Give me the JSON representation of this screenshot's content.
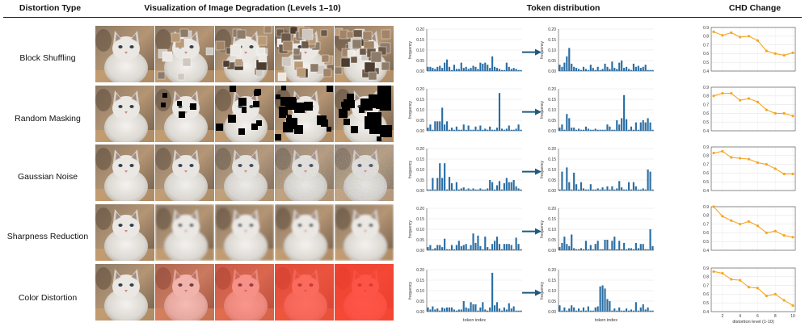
{
  "headers": {
    "distortion_type": "Distortion Type",
    "visualization": "Visualization of Image Degradation (Levels 1–10)",
    "token_distribution": "Token distribution",
    "chd_change": "CHD Change"
  },
  "rows": [
    {
      "label": "Block Shuffling",
      "distortion": "block_shuffle"
    },
    {
      "label": "Random Masking",
      "distortion": "random_mask"
    },
    {
      "label": "Gaussian Noise",
      "distortion": "gaussian_noise"
    },
    {
      "label": "Sharpness Reduction",
      "distortion": "blur"
    },
    {
      "label": "Color Distortion",
      "distortion": "color"
    }
  ],
  "colors": {
    "bar": "#2b6ea3",
    "line": "#f5a623",
    "arrow": "#1f5a7e",
    "tint": "#ff3a2a"
  },
  "chart_data": [
    {
      "type": "bar",
      "row": 0,
      "side": "before",
      "ylabel": "frequency",
      "ylim": [
        0,
        0.2
      ],
      "yticks": [
        "0.00",
        "0.05",
        "0.10",
        "0.15",
        "0.20"
      ],
      "values": [
        0.02,
        0.02,
        0.015,
        0.01,
        0.02,
        0.025,
        0.015,
        0.04,
        0.055,
        0.02,
        0.005,
        0.03,
        0.01,
        0.01,
        0.04,
        0.015,
        0.02,
        0.01,
        0.015,
        0.025,
        0.02,
        0.01,
        0.04,
        0.035,
        0.04,
        0.03,
        0.015,
        0.07,
        0.02,
        0.015,
        0.01,
        0.005,
        0.005,
        0.04,
        0.02,
        0.01,
        0.015,
        0.01,
        0.005,
        0.005
      ]
    },
    {
      "type": "bar",
      "row": 0,
      "side": "after",
      "ylabel": "frequency",
      "ylim": [
        0,
        0.2
      ],
      "yticks": [
        "0.00",
        "0.05",
        "0.10",
        "0.15",
        "0.20"
      ],
      "values": [
        0.03,
        0.02,
        0.04,
        0.07,
        0.11,
        0.035,
        0.02,
        0.015,
        0.01,
        0.005,
        0.02,
        0.01,
        0.005,
        0.03,
        0.015,
        0.005,
        0.02,
        0.005,
        0.01,
        0.035,
        0.02,
        0.01,
        0.045,
        0.015,
        0.01,
        0.04,
        0.05,
        0.015,
        0.02,
        0.01,
        0.005,
        0.035,
        0.02,
        0.025,
        0.015,
        0.02,
        0.03,
        0.005,
        0.005,
        0.005
      ]
    },
    {
      "type": "bar",
      "row": 1,
      "side": "before",
      "ylabel": "frequency",
      "ylim": [
        0,
        0.2
      ],
      "yticks": [
        "0.00",
        "0.05",
        "0.10",
        "0.15",
        "0.20"
      ],
      "values": [
        0.015,
        0.03,
        0.005,
        0.045,
        0.045,
        0.045,
        0.11,
        0.03,
        0.045,
        0.005,
        0.015,
        0.005,
        0.02,
        0.005,
        0.005,
        0.03,
        0.005,
        0.025,
        0.005,
        0.005,
        0.02,
        0.005,
        0.025,
        0.005,
        0.01,
        0.005,
        0.02,
        0.005,
        0.005,
        0.015,
        0.18,
        0.01,
        0.005,
        0.01,
        0.025,
        0.005,
        0.005,
        0.01,
        0.03,
        0.005
      ]
    },
    {
      "type": "bar",
      "row": 1,
      "side": "after",
      "ylabel": "frequency",
      "ylim": [
        0,
        0.2
      ],
      "yticks": [
        "0.00",
        "0.05",
        "0.10",
        "0.15",
        "0.20"
      ],
      "values": [
        0.015,
        0.03,
        0.005,
        0.08,
        0.06,
        0.015,
        0.015,
        0.005,
        0.01,
        0.005,
        0.005,
        0.02,
        0.01,
        0.005,
        0.005,
        0.01,
        0.005,
        0.005,
        0.005,
        0.005,
        0.03,
        0.02,
        0.005,
        0.005,
        0.05,
        0.03,
        0.06,
        0.17,
        0.055,
        0.005,
        0.02,
        0.005,
        0.04,
        0.005,
        0.04,
        0.05,
        0.04,
        0.06,
        0.04,
        0.005
      ]
    },
    {
      "type": "bar",
      "row": 2,
      "side": "before",
      "ylabel": "frequency",
      "ylim": [
        0,
        0.2
      ],
      "yticks": [
        "0.00",
        "0.05",
        "0.10",
        "0.15",
        "0.20"
      ],
      "values": [
        0.005,
        0.005,
        0.06,
        0.005,
        0.06,
        0.13,
        0.06,
        0.13,
        0.005,
        0.065,
        0.035,
        0.005,
        0.04,
        0.005,
        0.01,
        0.015,
        0.005,
        0.01,
        0.005,
        0.01,
        0.005,
        0.005,
        0.01,
        0.005,
        0.005,
        0.01,
        0.05,
        0.04,
        0.005,
        0.025,
        0.045,
        0.005,
        0.035,
        0.06,
        0.04,
        0.04,
        0.05,
        0.02,
        0.01,
        0.005
      ]
    },
    {
      "type": "bar",
      "row": 2,
      "side": "after",
      "ylabel": "frequency",
      "ylim": [
        0,
        0.2
      ],
      "yticks": [
        "0.00",
        "0.05",
        "0.10",
        "0.15",
        "0.20"
      ],
      "values": [
        0.005,
        0.09,
        0.005,
        0.11,
        0.04,
        0.005,
        0.085,
        0.03,
        0.005,
        0.04,
        0.01,
        0.005,
        0.005,
        0.03,
        0.005,
        0.005,
        0.01,
        0.005,
        0.015,
        0.005,
        0.02,
        0.005,
        0.02,
        0.005,
        0.01,
        0.045,
        0.015,
        0.005,
        0.005,
        0.04,
        0.005,
        0.04,
        0.02,
        0.005,
        0.005,
        0.01,
        0.005,
        0.1,
        0.09,
        0.005
      ]
    },
    {
      "type": "bar",
      "row": 3,
      "side": "before",
      "ylabel": "frequency",
      "ylim": [
        0,
        0.2
      ],
      "yticks": [
        "0.00",
        "0.05",
        "0.10",
        "0.15",
        "0.20"
      ],
      "values": [
        0.015,
        0.025,
        0.005,
        0.01,
        0.025,
        0.025,
        0.015,
        0.055,
        0.005,
        0.005,
        0.025,
        0.005,
        0.025,
        0.045,
        0.02,
        0.025,
        0.03,
        0.005,
        0.025,
        0.08,
        0.035,
        0.07,
        0.02,
        0.005,
        0.065,
        0.015,
        0.005,
        0.03,
        0.045,
        0.065,
        0.03,
        0.005,
        0.03,
        0.03,
        0.03,
        0.025,
        0.005,
        0.06,
        0.03,
        0.005
      ]
    },
    {
      "type": "bar",
      "row": 3,
      "side": "after",
      "ylabel": "frequency",
      "ylim": [
        0,
        0.2
      ],
      "yticks": [
        "0.00",
        "0.05",
        "0.10",
        "0.15",
        "0.20"
      ],
      "values": [
        0.015,
        0.035,
        0.065,
        0.03,
        0.02,
        0.075,
        0.01,
        0.005,
        0.005,
        0.01,
        0.005,
        0.045,
        0.005,
        0.025,
        0.005,
        0.03,
        0.045,
        0.005,
        0.005,
        0.05,
        0.05,
        0.005,
        0.045,
        0.065,
        0.005,
        0.045,
        0.005,
        0.035,
        0.005,
        0.01,
        0.01,
        0.005,
        0.035,
        0.01,
        0.03,
        0.03,
        0.005,
        0.005,
        0.1,
        0.02
      ]
    },
    {
      "type": "bar",
      "row": 4,
      "side": "before",
      "xlabel": "token index",
      "ylabel": "frequency",
      "ylim": [
        0,
        0.2
      ],
      "yticks": [
        "0.00",
        "0.05",
        "0.10",
        "0.15",
        "0.20"
      ],
      "values": [
        0.02,
        0.01,
        0.025,
        0.01,
        0.015,
        0.005,
        0.02,
        0.015,
        0.02,
        0.02,
        0.02,
        0.01,
        0.005,
        0.01,
        0.01,
        0.05,
        0.02,
        0.015,
        0.045,
        0.035,
        0.035,
        0.005,
        0.02,
        0.045,
        0.01,
        0.005,
        0.02,
        0.185,
        0.03,
        0.045,
        0.015,
        0.005,
        0.02,
        0.01,
        0.04,
        0.015,
        0.025,
        0.005,
        0.005,
        0.005
      ]
    },
    {
      "type": "bar",
      "row": 4,
      "side": "after",
      "xlabel": "token index",
      "ylabel": "frequency",
      "ylim": [
        0,
        0.2
      ],
      "yticks": [
        "0.00",
        "0.05",
        "0.10",
        "0.15",
        "0.20"
      ],
      "values": [
        0.03,
        0.005,
        0.02,
        0.005,
        0.015,
        0.03,
        0.02,
        0.005,
        0.015,
        0.005,
        0.02,
        0.005,
        0.025,
        0.005,
        0.005,
        0.02,
        0.025,
        0.12,
        0.125,
        0.11,
        0.06,
        0.05,
        0.005,
        0.015,
        0.005,
        0.02,
        0.005,
        0.005,
        0.015,
        0.005,
        0.01,
        0.005,
        0.045,
        0.005,
        0.02,
        0.035,
        0.01,
        0.02,
        0.005,
        0.005
      ]
    },
    {
      "type": "line",
      "row": 0,
      "ylim": [
        0.4,
        0.9
      ],
      "yticks": [
        "0.4",
        "0.5",
        "0.6",
        "0.7",
        "0.8",
        "0.9"
      ],
      "x": [
        1,
        2,
        3,
        4,
        5,
        6,
        7,
        8,
        9,
        10
      ],
      "values": [
        0.85,
        0.81,
        0.84,
        0.79,
        0.8,
        0.75,
        0.63,
        0.6,
        0.58,
        0.61
      ]
    },
    {
      "type": "line",
      "row": 1,
      "ylim": [
        0.4,
        0.9
      ],
      "yticks": [
        "0.4",
        "0.5",
        "0.6",
        "0.7",
        "0.8",
        "0.9"
      ],
      "x": [
        1,
        2,
        3,
        4,
        5,
        6,
        7,
        8,
        9,
        10
      ],
      "values": [
        0.8,
        0.83,
        0.83,
        0.75,
        0.77,
        0.73,
        0.64,
        0.6,
        0.6,
        0.57
      ]
    },
    {
      "type": "line",
      "row": 2,
      "ylim": [
        0.4,
        0.9
      ],
      "yticks": [
        "0.4",
        "0.5",
        "0.6",
        "0.7",
        "0.8",
        "0.9"
      ],
      "x": [
        1,
        2,
        3,
        4,
        5,
        6,
        7,
        8,
        9,
        10
      ],
      "values": [
        0.83,
        0.85,
        0.78,
        0.77,
        0.76,
        0.72,
        0.7,
        0.65,
        0.59,
        0.59
      ]
    },
    {
      "type": "line",
      "row": 3,
      "ylim": [
        0.4,
        0.9
      ],
      "yticks": [
        "0.4",
        "0.5",
        "0.6",
        "0.7",
        "0.8",
        "0.9"
      ],
      "x": [
        1,
        2,
        3,
        4,
        5,
        6,
        7,
        8,
        9,
        10
      ],
      "values": [
        0.9,
        0.79,
        0.74,
        0.7,
        0.73,
        0.68,
        0.6,
        0.62,
        0.57,
        0.55
      ]
    },
    {
      "type": "line",
      "row": 4,
      "xlabel": "distortion level (1-10)",
      "ylim": [
        0.4,
        0.9
      ],
      "yticks": [
        "0.4",
        "0.5",
        "0.6",
        "0.7",
        "0.8",
        "0.9"
      ],
      "xticks": [
        "2",
        "4",
        "6",
        "8",
        "10"
      ],
      "x": [
        1,
        2,
        3,
        4,
        5,
        6,
        7,
        8,
        9,
        10
      ],
      "values": [
        0.86,
        0.84,
        0.77,
        0.76,
        0.68,
        0.67,
        0.58,
        0.6,
        0.53,
        0.47
      ]
    }
  ]
}
